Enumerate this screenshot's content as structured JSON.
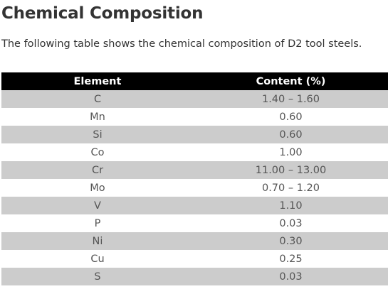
{
  "heading": "Chemical Composition",
  "intro": "The following table shows the chemical composition of D2 tool steels.",
  "table": {
    "headers": [
      "Element",
      "Content (%)"
    ],
    "rows": [
      [
        "C",
        "1.40 – 1.60"
      ],
      [
        "Mn",
        "0.60"
      ],
      [
        "Si",
        "0.60"
      ],
      [
        "Co",
        "1.00"
      ],
      [
        "Cr",
        "11.00 – 13.00"
      ],
      [
        "Mo",
        "0.70 – 1.20"
      ],
      [
        "V",
        "1.10"
      ],
      [
        "P",
        "0.03"
      ],
      [
        "Ni",
        "0.30"
      ],
      [
        "Cu",
        "0.25"
      ],
      [
        "S",
        "0.03"
      ]
    ]
  }
}
